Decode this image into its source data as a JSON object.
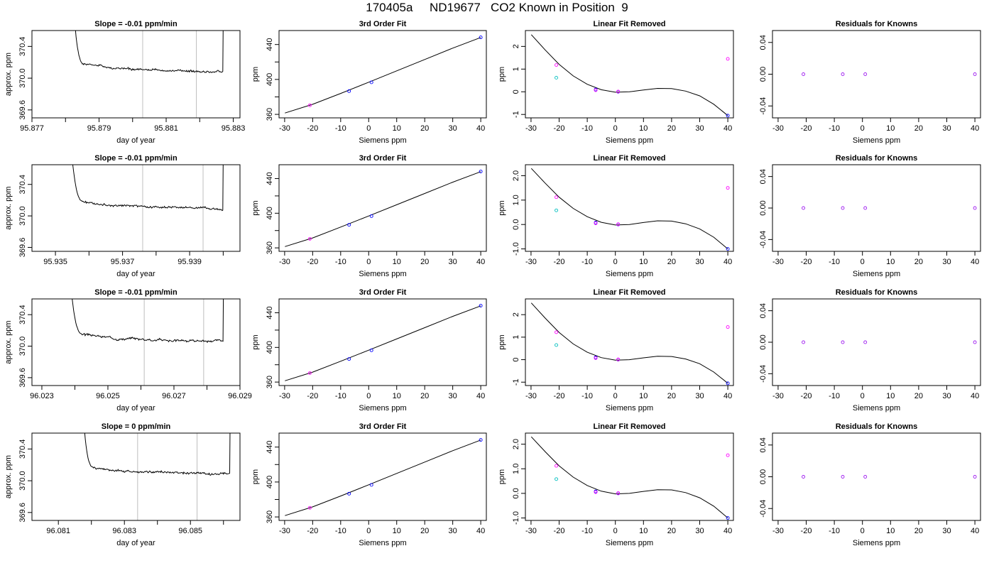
{
  "title": "170405a     ND19677   CO2 Known in Position  9",
  "colors": {
    "knowns_blue": "#0000ff",
    "knowns_magenta": "#ff00ff",
    "knowns_cyan": "#00bfbf",
    "trace": "#000000",
    "window_lines": "#bebebe",
    "residual_points": "#a020f0"
  },
  "chart_data": [
    {
      "type": "line",
      "title": "Slope =  -0.01  ppm/min",
      "xlabel": "day of year",
      "ylabel": "approx. ppm",
      "xlim": [
        95.877,
        95.8832
      ],
      "ylim": [
        369.5,
        370.6
      ],
      "xticks": [
        95.877,
        95.878,
        95.879,
        95.88,
        95.881,
        95.882,
        95.883
      ],
      "xtick_labels": [
        "95.877",
        "",
        "95.879",
        "",
        "95.881",
        "",
        "95.883"
      ],
      "yticks": [
        369.6,
        370.0,
        370.4
      ],
      "ytick_labels": [
        "369.6",
        "370.0",
        "370.4"
      ],
      "window": [
        95.8803,
        95.8819
      ],
      "start": 95.8782,
      "settle": 95.8786,
      "end": 95.8827,
      "level": 370.12,
      "seed": 1
    },
    {
      "type": "line",
      "title": "3rd Order Fit",
      "xlabel": "Siemens ppm",
      "ylabel": "ppm",
      "xlim": [
        -32,
        42
      ],
      "ylim": [
        356,
        456
      ],
      "xticks": [
        -30,
        -20,
        -10,
        0,
        10,
        20,
        30,
        40
      ],
      "xtick_labels": [
        "-30",
        "-20",
        "-10",
        "0",
        "10",
        "20",
        "30",
        "40"
      ],
      "yticks": [
        360,
        380,
        400,
        420,
        440
      ],
      "ytick_labels": [
        "360",
        "",
        "400",
        "",
        "440"
      ],
      "curve_x": [
        -29.9,
        -20,
        -10,
        0,
        10,
        20,
        30,
        40
      ],
      "curve_y": [
        361.5,
        371.5,
        384.0,
        396.8,
        409.8,
        422.8,
        435.8,
        448.0
      ],
      "points": [
        {
          "x": -21,
          "y": 370.4,
          "c": "m"
        },
        {
          "x": -7,
          "y": 386.6,
          "c": "b"
        },
        {
          "x": 1,
          "y": 396.7,
          "c": "b"
        },
        {
          "x": 40,
          "y": 448.2,
          "c": "b"
        }
      ]
    },
    {
      "type": "line",
      "title": "Linear Fit Removed",
      "xlabel": "Siemens ppm",
      "ylabel": "ppm",
      "xlim": [
        -32,
        42
      ],
      "ylim": [
        -1.15,
        2.7
      ],
      "xticks": [
        -30,
        -20,
        -10,
        0,
        10,
        20,
        30,
        40
      ],
      "xtick_labels": [
        "-30",
        "-20",
        "-10",
        "0",
        "10",
        "20",
        "30",
        "40"
      ],
      "yticks": [
        -1,
        0,
        1,
        2
      ],
      "ytick_labels": [
        "-1",
        "0",
        "1",
        "2"
      ],
      "curve_x": [
        -29.9,
        -25,
        -20,
        -15,
        -10,
        -5,
        0,
        5,
        10,
        15,
        20,
        25,
        30,
        35,
        40
      ],
      "curve_y": [
        2.52,
        1.85,
        1.21,
        0.7,
        0.33,
        0.09,
        -0.02,
        0.0,
        0.08,
        0.15,
        0.14,
        0.03,
        -0.18,
        -0.55,
        -1.05
      ],
      "points": [
        {
          "x": -21,
          "y": 1.18,
          "c": "m"
        },
        {
          "x": -21,
          "y": 0.62,
          "c": "c"
        },
        {
          "x": -7,
          "y": 0.1,
          "c": "b"
        },
        {
          "x": -7,
          "y": 0.07,
          "c": "m"
        },
        {
          "x": 1,
          "y": 0.0,
          "c": "b"
        },
        {
          "x": 1,
          "y": 0.01,
          "c": "m"
        },
        {
          "x": 40,
          "y": -1.05,
          "c": "b"
        },
        {
          "x": 40,
          "y": 1.45,
          "c": "m"
        }
      ]
    },
    {
      "type": "scatter",
      "title": "Residuals for Knowns",
      "xlabel": "Siemens ppm",
      "ylabel": "",
      "xlim": [
        -32,
        42
      ],
      "ylim": [
        -0.055,
        0.055
      ],
      "xticks": [
        -30,
        -20,
        -10,
        0,
        10,
        20,
        30,
        40
      ],
      "xtick_labels": [
        "-30",
        "-20",
        "-10",
        "0",
        "10",
        "20",
        "30",
        "40"
      ],
      "yticks": [
        -0.04,
        0.0,
        0.04
      ],
      "ytick_labels": [
        "-0.04",
        "0.00",
        "0.04"
      ],
      "points": [
        {
          "x": -21,
          "y": 0,
          "c": "p"
        },
        {
          "x": -7,
          "y": 0,
          "c": "p"
        },
        {
          "x": 1,
          "y": 0,
          "c": "p"
        },
        {
          "x": 40,
          "y": 0,
          "c": "p"
        }
      ]
    },
    {
      "type": "line",
      "title": "Slope =  -0.01  ppm/min",
      "xlabel": "day of year",
      "ylabel": "approx. ppm",
      "xlim": [
        95.9343,
        95.9405
      ],
      "ylim": [
        369.55,
        370.65
      ],
      "xticks": [
        95.935,
        95.936,
        95.937,
        95.938,
        95.939,
        95.94
      ],
      "xtick_labels": [
        "95.935",
        "",
        "95.937",
        "",
        "95.939",
        ""
      ],
      "yticks": [
        369.6,
        370.0,
        370.4
      ],
      "ytick_labels": [
        "369.6",
        "370.0",
        "370.4"
      ],
      "window": [
        95.9376,
        95.9394
      ],
      "start": 95.9354,
      "settle": 95.9359,
      "end": 95.94,
      "level": 370.13,
      "seed": 2
    },
    {
      "type": "line",
      "title": "3rd Order Fit",
      "xlabel": "Siemens ppm",
      "ylabel": "ppm",
      "xlim": [
        -32,
        42
      ],
      "ylim": [
        356,
        456
      ],
      "xticks": [
        -30,
        -20,
        -10,
        0,
        10,
        20,
        30,
        40
      ],
      "xtick_labels": [
        "-30",
        "-20",
        "-10",
        "0",
        "10",
        "20",
        "30",
        "40"
      ],
      "yticks": [
        360,
        380,
        400,
        420,
        440
      ],
      "ytick_labels": [
        "360",
        "",
        "400",
        "",
        "440"
      ],
      "curve_x": [
        -29.9,
        -20,
        -10,
        0,
        10,
        20,
        30,
        40
      ],
      "curve_y": [
        361.5,
        371.5,
        384.0,
        396.8,
        409.8,
        422.8,
        435.8,
        448.0
      ],
      "points": [
        {
          "x": -21,
          "y": 370.4,
          "c": "m"
        },
        {
          "x": -7,
          "y": 386.6,
          "c": "b"
        },
        {
          "x": 1,
          "y": 396.7,
          "c": "b"
        },
        {
          "x": 40,
          "y": 448.2,
          "c": "b"
        }
      ]
    },
    {
      "type": "line",
      "title": "Linear Fit Removed",
      "xlabel": "Siemens ppm",
      "ylabel": "ppm",
      "xlim": [
        -32,
        42
      ],
      "ylim": [
        -1.1,
        2.45
      ],
      "xticks": [
        -30,
        -20,
        -10,
        0,
        10,
        20,
        30,
        40
      ],
      "xtick_labels": [
        "-30",
        "-20",
        "-10",
        "0",
        "10",
        "20",
        "30",
        "40"
      ],
      "yticks": [
        -1.0,
        0.0,
        1.0,
        2.0
      ],
      "ytick_labels": [
        "-1.0",
        "0.0",
        "1.0",
        "2.0"
      ],
      "curve_x": [
        -29.9,
        -25,
        -20,
        -15,
        -10,
        -5,
        0,
        5,
        10,
        15,
        20,
        25,
        30,
        35,
        40
      ],
      "curve_y": [
        2.3,
        1.7,
        1.12,
        0.66,
        0.32,
        0.09,
        -0.02,
        0.0,
        0.08,
        0.15,
        0.14,
        0.03,
        -0.18,
        -0.52,
        -1.0
      ],
      "points": [
        {
          "x": -21,
          "y": 1.12,
          "c": "m"
        },
        {
          "x": -21,
          "y": 0.58,
          "c": "c"
        },
        {
          "x": -7,
          "y": 0.08,
          "c": "b"
        },
        {
          "x": -7,
          "y": 0.05,
          "c": "m"
        },
        {
          "x": 1,
          "y": 0.0,
          "c": "b"
        },
        {
          "x": 1,
          "y": 0.01,
          "c": "m"
        },
        {
          "x": 40,
          "y": -1.0,
          "c": "b"
        },
        {
          "x": 40,
          "y": 1.5,
          "c": "m"
        }
      ]
    },
    {
      "type": "scatter",
      "title": "Residuals for Knowns",
      "xlabel": "Siemens ppm",
      "ylabel": "",
      "xlim": [
        -32,
        42
      ],
      "ylim": [
        -0.055,
        0.055
      ],
      "xticks": [
        -30,
        -20,
        -10,
        0,
        10,
        20,
        30,
        40
      ],
      "xtick_labels": [
        "-30",
        "-20",
        "-10",
        "0",
        "10",
        "20",
        "30",
        "40"
      ],
      "yticks": [
        -0.04,
        0.0,
        0.04
      ],
      "ytick_labels": [
        "-0.04",
        "0.00",
        "0.04"
      ],
      "points": [
        {
          "x": -21,
          "y": 0,
          "c": "p"
        },
        {
          "x": -7,
          "y": 0,
          "c": "p"
        },
        {
          "x": 1,
          "y": 0,
          "c": "p"
        },
        {
          "x": 40,
          "y": 0,
          "c": "p"
        }
      ]
    },
    {
      "type": "line",
      "title": "Slope =  -0.01  ppm/min",
      "xlabel": "day of year",
      "ylabel": "approx. ppm",
      "xlim": [
        96.0227,
        96.029
      ],
      "ylim": [
        369.5,
        370.6
      ],
      "xticks": [
        96.023,
        96.024,
        96.025,
        96.026,
        96.027,
        96.028,
        96.029
      ],
      "xtick_labels": [
        "96.023",
        "",
        "96.025",
        "",
        "96.027",
        "",
        "96.029"
      ],
      "yticks": [
        369.6,
        370.0,
        370.4
      ],
      "ytick_labels": [
        "369.6",
        "370.0",
        "370.4"
      ],
      "window": [
        96.0261,
        96.0279
      ],
      "start": 96.0238,
      "settle": 96.0243,
      "end": 96.0285,
      "level": 370.1,
      "seed": 3
    },
    {
      "type": "line",
      "title": "3rd Order Fit",
      "xlabel": "Siemens ppm",
      "ylabel": "ppm",
      "xlim": [
        -32,
        42
      ],
      "ylim": [
        356,
        456
      ],
      "xticks": [
        -30,
        -20,
        -10,
        0,
        10,
        20,
        30,
        40
      ],
      "xtick_labels": [
        "-30",
        "-20",
        "-10",
        "0",
        "10",
        "20",
        "30",
        "40"
      ],
      "yticks": [
        360,
        380,
        400,
        420,
        440
      ],
      "ytick_labels": [
        "360",
        "",
        "400",
        "",
        "440"
      ],
      "curve_x": [
        -29.9,
        -20,
        -10,
        0,
        10,
        20,
        30,
        40
      ],
      "curve_y": [
        361.5,
        371.5,
        384.0,
        396.8,
        409.8,
        422.8,
        435.8,
        448.0
      ],
      "points": [
        {
          "x": -21,
          "y": 370.4,
          "c": "m"
        },
        {
          "x": -7,
          "y": 386.6,
          "c": "b"
        },
        {
          "x": 1,
          "y": 396.7,
          "c": "b"
        },
        {
          "x": 40,
          "y": 448.2,
          "c": "b"
        }
      ]
    },
    {
      "type": "line",
      "title": "Linear Fit Removed",
      "xlabel": "Siemens ppm",
      "ylabel": "ppm",
      "xlim": [
        -32,
        42
      ],
      "ylim": [
        -1.15,
        2.7
      ],
      "xticks": [
        -30,
        -20,
        -10,
        0,
        10,
        20,
        30,
        40
      ],
      "xtick_labels": [
        "-30",
        "-20",
        "-10",
        "0",
        "10",
        "20",
        "30",
        "40"
      ],
      "yticks": [
        -1,
        0,
        1,
        2
      ],
      "ytick_labels": [
        "-1",
        "0",
        "1",
        "2"
      ],
      "curve_x": [
        -29.9,
        -25,
        -20,
        -15,
        -10,
        -5,
        0,
        5,
        10,
        15,
        20,
        25,
        30,
        35,
        40
      ],
      "curve_y": [
        2.52,
        1.85,
        1.21,
        0.7,
        0.33,
        0.09,
        -0.02,
        0.0,
        0.08,
        0.15,
        0.14,
        0.03,
        -0.18,
        -0.55,
        -1.05
      ],
      "points": [
        {
          "x": -21,
          "y": 1.22,
          "c": "m"
        },
        {
          "x": -21,
          "y": 0.65,
          "c": "c"
        },
        {
          "x": -7,
          "y": 0.1,
          "c": "b"
        },
        {
          "x": -7,
          "y": 0.07,
          "c": "m"
        },
        {
          "x": 1,
          "y": 0.0,
          "c": "b"
        },
        {
          "x": 1,
          "y": 0.01,
          "c": "m"
        },
        {
          "x": 40,
          "y": -1.05,
          "c": "b"
        },
        {
          "x": 40,
          "y": 1.45,
          "c": "m"
        }
      ]
    },
    {
      "type": "scatter",
      "title": "Residuals for Knowns",
      "xlabel": "Siemens ppm",
      "ylabel": "",
      "xlim": [
        -32,
        42
      ],
      "ylim": [
        -0.055,
        0.055
      ],
      "xticks": [
        -30,
        -20,
        -10,
        0,
        10,
        20,
        30,
        40
      ],
      "xtick_labels": [
        "-30",
        "-20",
        "-10",
        "0",
        "10",
        "20",
        "30",
        "40"
      ],
      "yticks": [
        -0.04,
        0.0,
        0.04
      ],
      "ytick_labels": [
        "-0.04",
        "0.00",
        "0.04"
      ],
      "points": [
        {
          "x": -21,
          "y": 0,
          "c": "p"
        },
        {
          "x": -7,
          "y": 0,
          "c": "p"
        },
        {
          "x": 1,
          "y": 0,
          "c": "p"
        },
        {
          "x": 40,
          "y": 0,
          "c": "p"
        }
      ]
    },
    {
      "type": "line",
      "title": "Slope =  0  ppm/min",
      "xlabel": "day of year",
      "ylabel": "approx. ppm",
      "xlim": [
        96.0802,
        96.0865
      ],
      "ylim": [
        369.5,
        370.6
      ],
      "xticks": [
        96.081,
        96.082,
        96.083,
        96.084,
        96.085,
        96.086
      ],
      "xtick_labels": [
        "96.081",
        "",
        "96.083",
        "",
        "96.085",
        ""
      ],
      "yticks": [
        369.6,
        370.0,
        370.4
      ],
      "ytick_labels": [
        "369.6",
        "370.0",
        "370.4"
      ],
      "window": [
        96.0834,
        96.0852
      ],
      "start": 96.0817,
      "settle": 96.0821,
      "end": 96.0862,
      "level": 370.12,
      "seed": 4
    },
    {
      "type": "line",
      "title": "3rd Order Fit",
      "xlabel": "Siemens ppm",
      "ylabel": "ppm",
      "xlim": [
        -32,
        42
      ],
      "ylim": [
        356,
        456
      ],
      "xticks": [
        -30,
        -20,
        -10,
        0,
        10,
        20,
        30,
        40
      ],
      "xtick_labels": [
        "-30",
        "-20",
        "-10",
        "0",
        "10",
        "20",
        "30",
        "40"
      ],
      "yticks": [
        360,
        380,
        400,
        420,
        440
      ],
      "ytick_labels": [
        "360",
        "",
        "400",
        "",
        "440"
      ],
      "curve_x": [
        -29.9,
        -20,
        -10,
        0,
        10,
        20,
        30,
        40
      ],
      "curve_y": [
        361.5,
        371.5,
        384.0,
        396.8,
        409.8,
        422.8,
        435.8,
        448.0
      ],
      "points": [
        {
          "x": -21,
          "y": 370.4,
          "c": "m"
        },
        {
          "x": -7,
          "y": 386.6,
          "c": "b"
        },
        {
          "x": 1,
          "y": 396.7,
          "c": "b"
        },
        {
          "x": 40,
          "y": 448.2,
          "c": "b"
        }
      ]
    },
    {
      "type": "line",
      "title": "Linear Fit Removed",
      "xlabel": "Siemens ppm",
      "ylabel": "ppm",
      "xlim": [
        -32,
        42
      ],
      "ylim": [
        -1.1,
        2.45
      ],
      "xticks": [
        -30,
        -20,
        -10,
        0,
        10,
        20,
        30,
        40
      ],
      "xtick_labels": [
        "-30",
        "-20",
        "-10",
        "0",
        "10",
        "20",
        "30",
        "40"
      ],
      "yticks": [
        -1.0,
        0.0,
        1.0,
        2.0
      ],
      "ytick_labels": [
        "-1.0",
        "0.0",
        "1.0",
        "2.0"
      ],
      "curve_x": [
        -29.9,
        -25,
        -20,
        -15,
        -10,
        -5,
        0,
        5,
        10,
        15,
        20,
        25,
        30,
        35,
        40
      ],
      "curve_y": [
        2.3,
        1.7,
        1.12,
        0.66,
        0.32,
        0.09,
        -0.02,
        0.0,
        0.08,
        0.15,
        0.14,
        0.03,
        -0.18,
        -0.52,
        -1.0
      ],
      "points": [
        {
          "x": -21,
          "y": 1.12,
          "c": "m"
        },
        {
          "x": -21,
          "y": 0.58,
          "c": "c"
        },
        {
          "x": -7,
          "y": 0.08,
          "c": "b"
        },
        {
          "x": -7,
          "y": 0.05,
          "c": "m"
        },
        {
          "x": 1,
          "y": 0.0,
          "c": "b"
        },
        {
          "x": 1,
          "y": 0.01,
          "c": "m"
        },
        {
          "x": 40,
          "y": -1.0,
          "c": "b"
        },
        {
          "x": 40,
          "y": 1.55,
          "c": "m"
        }
      ]
    },
    {
      "type": "scatter",
      "title": "Residuals for Knowns",
      "xlabel": "Siemens ppm",
      "ylabel": "",
      "xlim": [
        -32,
        42
      ],
      "ylim": [
        -0.055,
        0.055
      ],
      "xticks": [
        -30,
        -20,
        -10,
        0,
        10,
        20,
        30,
        40
      ],
      "xtick_labels": [
        "-30",
        "-20",
        "-10",
        "0",
        "10",
        "20",
        "30",
        "40"
      ],
      "yticks": [
        -0.04,
        0.0,
        0.04
      ],
      "ytick_labels": [
        "-0.04",
        "0.00",
        "0.04"
      ],
      "points": [
        {
          "x": -21,
          "y": 0,
          "c": "p"
        },
        {
          "x": -7,
          "y": 0,
          "c": "p"
        },
        {
          "x": 1,
          "y": 0,
          "c": "p"
        },
        {
          "x": 40,
          "y": 0,
          "c": "p"
        }
      ]
    }
  ]
}
